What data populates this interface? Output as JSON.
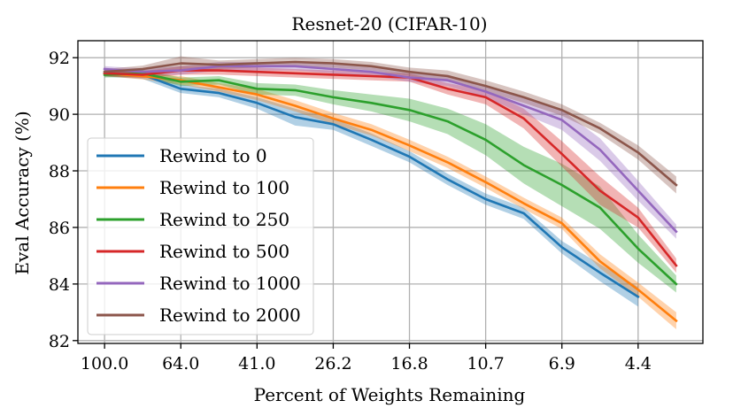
{
  "chart_data": {
    "type": "line",
    "title": "Resnet-20 (CIFAR-10)",
    "xlabel": "Percent of Weights Remaining",
    "ylabel": "Eval Accuracy (%)",
    "x_tick_labels": [
      "100.0",
      "64.0",
      "41.0",
      "26.2",
      "16.8",
      "10.7",
      "6.9",
      "4.4"
    ],
    "x_tick_steps": [
      0,
      2,
      4,
      6,
      8,
      10,
      12,
      14
    ],
    "xlim": [
      -0.7,
      15.7
    ],
    "y_ticks": [
      82,
      84,
      86,
      88,
      90,
      92
    ],
    "ylim": [
      81.9,
      92.6
    ],
    "grid": true,
    "legend_position": "center-left",
    "x_steps": [
      0,
      1,
      2,
      3,
      4,
      5,
      6,
      7,
      8,
      9,
      10,
      11,
      12,
      13,
      14,
      15
    ],
    "series": [
      {
        "name": "Rewind to 0",
        "color": "#1f77b4",
        "values": [
          91.45,
          91.4,
          90.9,
          90.75,
          90.4,
          89.9,
          89.65,
          89.1,
          88.5,
          87.7,
          87.0,
          86.5,
          85.3,
          84.4,
          83.55,
          null
        ],
        "band": [
          0.12,
          0.15,
          0.15,
          0.15,
          0.2,
          0.3,
          0.2,
          0.22,
          0.2,
          0.2,
          0.2,
          0.2,
          0.22,
          0.3,
          0.35,
          null
        ]
      },
      {
        "name": "Rewind to 100",
        "color": "#ff7f0e",
        "values": [
          91.45,
          91.35,
          91.2,
          90.95,
          90.7,
          90.3,
          89.85,
          89.45,
          88.9,
          88.3,
          87.6,
          86.85,
          86.15,
          84.8,
          83.8,
          82.7
        ],
        "band": [
          0.1,
          0.12,
          0.15,
          0.15,
          0.2,
          0.2,
          0.2,
          0.2,
          0.2,
          0.2,
          0.2,
          0.2,
          0.2,
          0.25,
          0.25,
          0.3
        ]
      },
      {
        "name": "Rewind to 250",
        "color": "#2ca02c",
        "values": [
          91.4,
          91.45,
          91.15,
          91.2,
          90.9,
          90.85,
          90.6,
          90.4,
          90.15,
          89.75,
          89.1,
          88.2,
          87.5,
          86.7,
          85.25,
          84.0
        ],
        "band": [
          0.1,
          0.12,
          0.15,
          0.15,
          0.2,
          0.2,
          0.25,
          0.3,
          0.4,
          0.45,
          0.55,
          0.65,
          0.75,
          0.75,
          0.5,
          0.3
        ]
      },
      {
        "name": "Rewind to 500",
        "color": "#d62728",
        "values": [
          91.45,
          91.4,
          91.55,
          91.55,
          91.5,
          91.45,
          91.4,
          91.35,
          91.3,
          90.9,
          90.6,
          89.85,
          88.6,
          87.3,
          86.35,
          84.65
        ],
        "band": [
          0.1,
          0.12,
          0.15,
          0.15,
          0.15,
          0.15,
          0.15,
          0.15,
          0.15,
          0.2,
          0.25,
          0.35,
          0.45,
          0.5,
          0.35,
          0.25
        ]
      },
      {
        "name": "Rewind to 1000",
        "color": "#9467bd",
        "values": [
          91.6,
          91.5,
          91.55,
          91.7,
          91.7,
          91.7,
          91.6,
          91.5,
          91.3,
          91.2,
          90.8,
          90.3,
          89.8,
          88.75,
          87.3,
          85.85
        ],
        "band": [
          0.1,
          0.12,
          0.15,
          0.15,
          0.15,
          0.15,
          0.15,
          0.15,
          0.15,
          0.2,
          0.2,
          0.3,
          0.35,
          0.4,
          0.35,
          0.25
        ]
      },
      {
        "name": "Rewind to 2000",
        "color": "#8c564b",
        "values": [
          91.5,
          91.6,
          91.8,
          91.75,
          91.8,
          91.85,
          91.8,
          91.7,
          91.5,
          91.35,
          91.0,
          90.6,
          90.15,
          89.5,
          88.65,
          87.5
        ],
        "band": [
          0.1,
          0.12,
          0.25,
          0.15,
          0.15,
          0.15,
          0.15,
          0.15,
          0.15,
          0.2,
          0.2,
          0.2,
          0.2,
          0.2,
          0.25,
          0.3
        ]
      }
    ]
  }
}
